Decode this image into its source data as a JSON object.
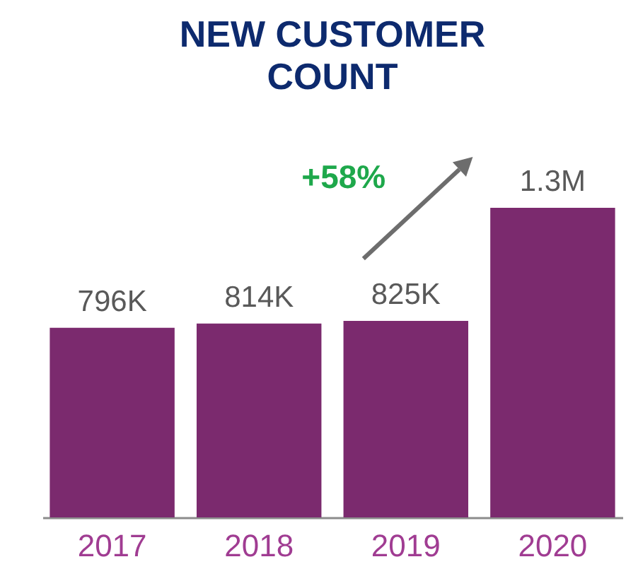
{
  "chart_data": {
    "type": "bar",
    "title": "NEW CUSTOMER\nCOUNT",
    "categories": [
      "2017",
      "2018",
      "2019",
      "2020"
    ],
    "values": [
      796000,
      814000,
      825000,
      1300000
    ],
    "value_labels": [
      "796K",
      "814K",
      "825K",
      "1.3M"
    ],
    "color": "#7b2a6e",
    "annotations": [
      "+58%"
    ]
  }
}
